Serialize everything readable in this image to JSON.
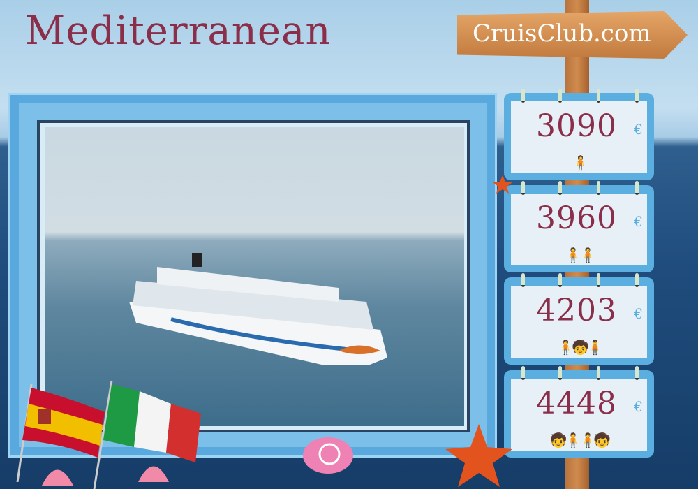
{
  "title": "Mediterranean",
  "brand": "CruisClub.com",
  "currency": "€",
  "prices": [
    {
      "value": "3090",
      "people_icon": "single-person-icon"
    },
    {
      "value": "3960",
      "people_icon": "couple-icon"
    },
    {
      "value": "4203",
      "people_icon": "family-one-child-icon"
    },
    {
      "value": "4448",
      "people_icon": "family-two-children-icon"
    }
  ],
  "flags": [
    "Spain",
    "Italy"
  ],
  "colors": {
    "title": "#8b2e4a",
    "frame": "#5aaee0",
    "euro": "#5aaee0"
  }
}
